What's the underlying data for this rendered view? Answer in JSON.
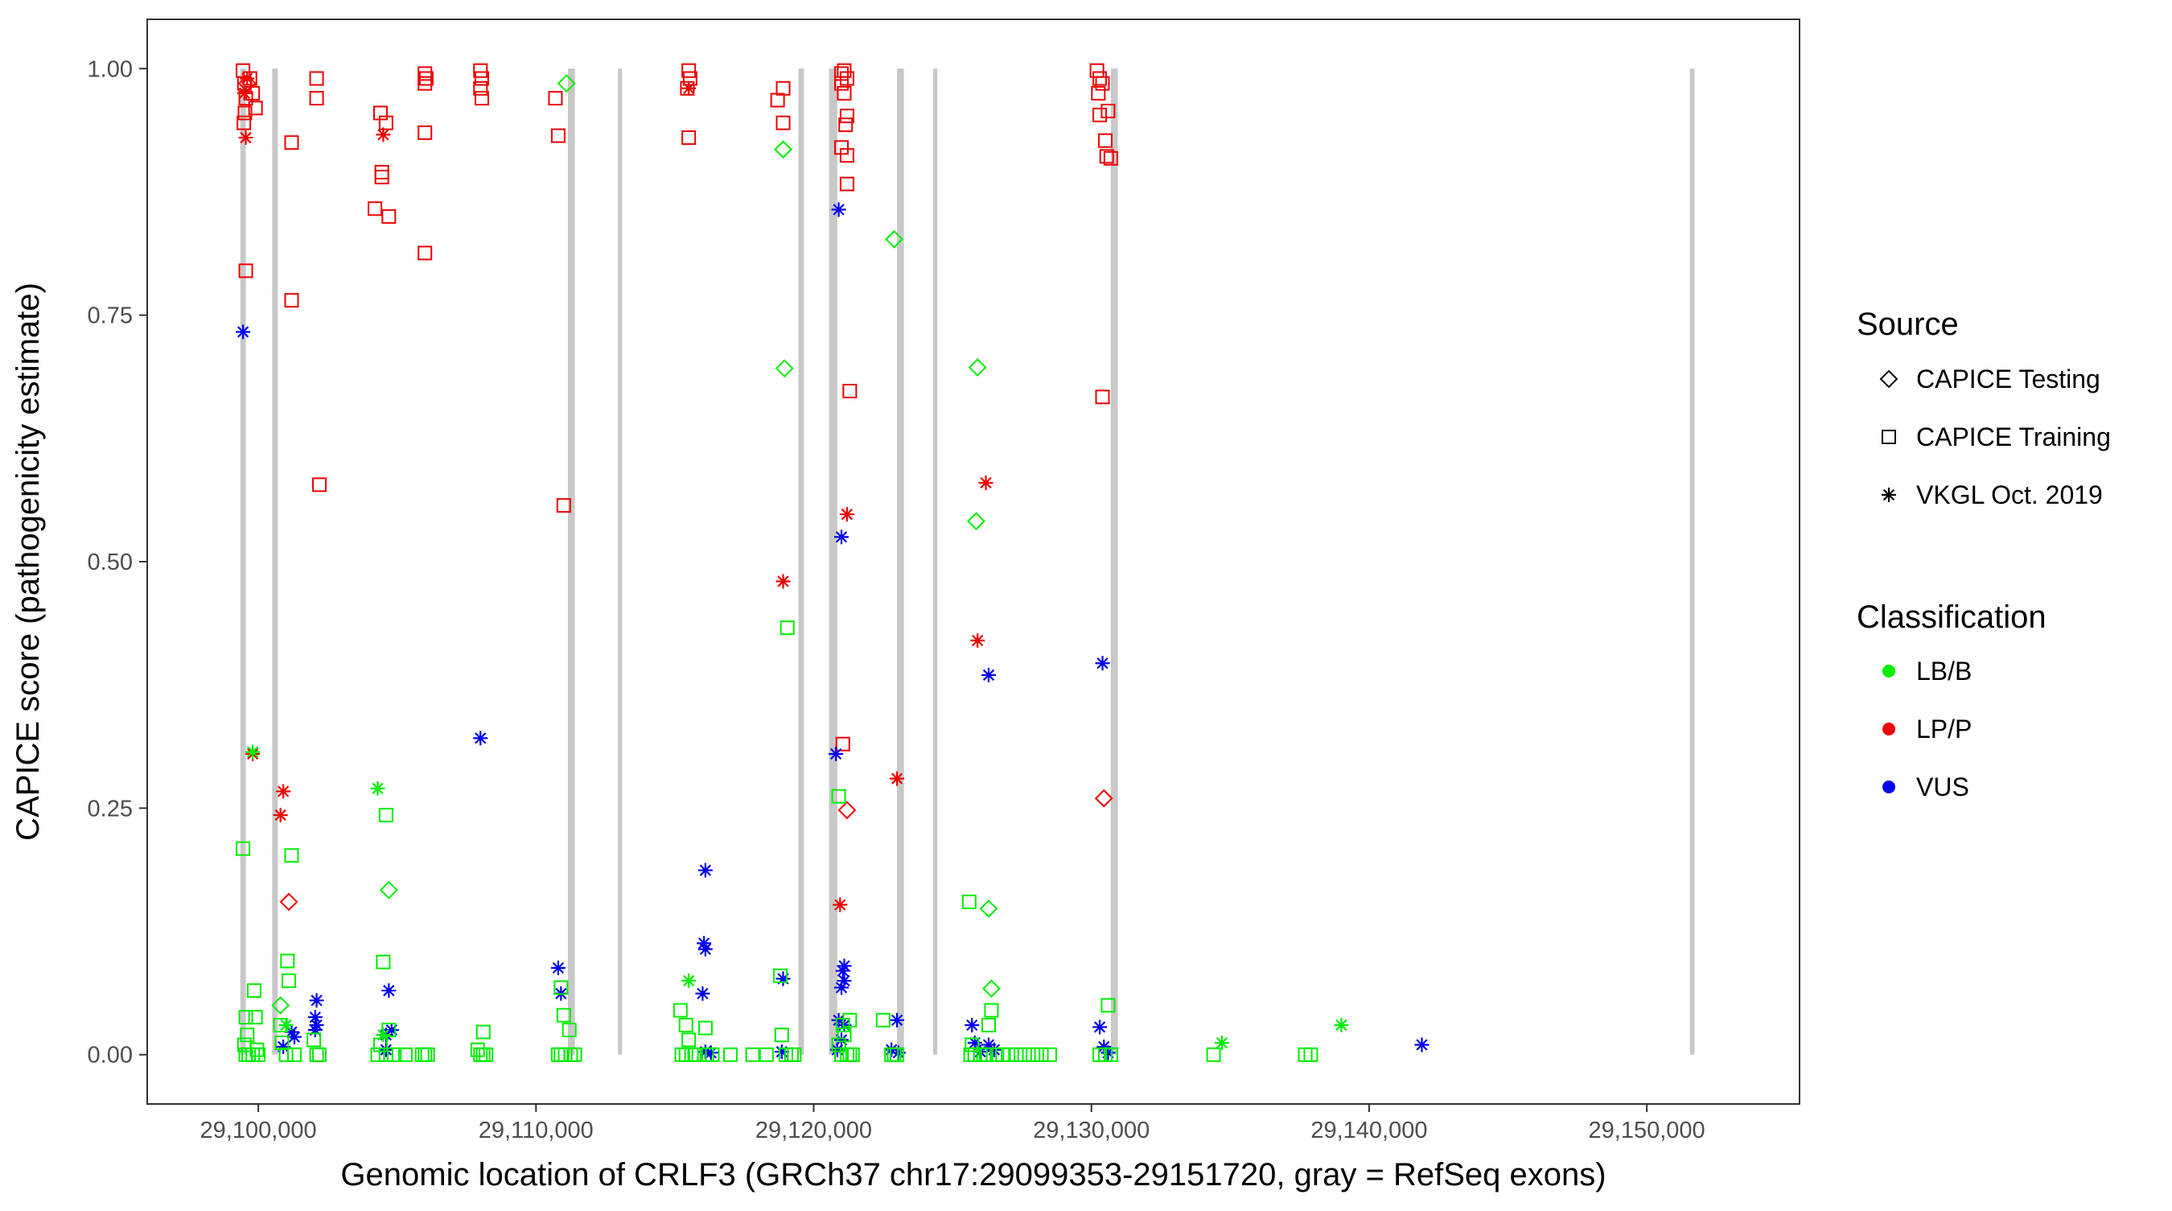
{
  "chart_data": {
    "type": "scatter",
    "xlabel": "Genomic location of CRLF3 (GRCh37 chr17:29099353-29151720, gray = RefSeq exons)",
    "ylabel": "CAPICE score (pathogenicity estimate)",
    "xlim": [
      29096000,
      29155500
    ],
    "ylim": [
      -0.05,
      1.05
    ],
    "x_ticks": [
      29100000,
      29110000,
      29120000,
      29130000,
      29140000,
      29150000
    ],
    "x_tick_labels": [
      "29,100,000",
      "29,110,000",
      "29,120,000",
      "29,130,000",
      "29,140,000",
      "29,150,000"
    ],
    "y_ticks": [
      0,
      0.25,
      0.5,
      0.75,
      1.0
    ],
    "y_tick_labels": [
      "0.00",
      "0.25",
      "0.50",
      "0.75",
      "1.00"
    ],
    "grid": false,
    "exons": [
      {
        "start": 29099353,
        "end": 29099550
      },
      {
        "start": 29100500,
        "end": 29100700
      },
      {
        "start": 29111150,
        "end": 29111400
      },
      {
        "start": 29112950,
        "end": 29113100
      },
      {
        "start": 29119450,
        "end": 29119650
      },
      {
        "start": 29120550,
        "end": 29120850
      },
      {
        "start": 29123000,
        "end": 29123250
      },
      {
        "start": 29124300,
        "end": 29124450
      },
      {
        "start": 29130700,
        "end": 29130950
      },
      {
        "start": 29151550,
        "end": 29151720
      }
    ],
    "legend": {
      "source_title": "Source",
      "source_items": [
        {
          "label": "CAPICE Testing",
          "shape": "diamond"
        },
        {
          "label": "CAPICE Training",
          "shape": "square"
        },
        {
          "label": "VKGL Oct. 2019",
          "shape": "star"
        }
      ],
      "class_title": "Classification",
      "class_items": [
        {
          "label": "LB/B",
          "color": "#00ee00"
        },
        {
          "label": "LP/P",
          "color": "#ee0000"
        },
        {
          "label": "VUS",
          "color": "#0000ee"
        }
      ]
    },
    "series": [
      {
        "shape": "square",
        "class": "LP/P",
        "points": [
          [
            29099450,
            0.998
          ],
          [
            29099500,
            0.985
          ],
          [
            29099550,
            0.97
          ],
          [
            29099520,
            0.955
          ],
          [
            29099480,
            0.945
          ],
          [
            29099700,
            0.99
          ],
          [
            29099800,
            0.975
          ],
          [
            29099900,
            0.96
          ],
          [
            29099550,
            0.795
          ],
          [
            29101200,
            0.925
          ],
          [
            29101200,
            0.765
          ],
          [
            29102100,
            0.99
          ],
          [
            29102100,
            0.97
          ],
          [
            29102200,
            0.578
          ],
          [
            29104400,
            0.955
          ],
          [
            29104600,
            0.945
          ],
          [
            29104450,
            0.895
          ],
          [
            29104450,
            0.89
          ],
          [
            29104200,
            0.858
          ],
          [
            29104700,
            0.85
          ],
          [
            29106000,
            0.995
          ],
          [
            29106050,
            0.99
          ],
          [
            29106000,
            0.985
          ],
          [
            29106000,
            0.935
          ],
          [
            29106000,
            0.813
          ],
          [
            29108000,
            0.998
          ],
          [
            29108050,
            0.99
          ],
          [
            29108000,
            0.98
          ],
          [
            29108050,
            0.97
          ],
          [
            29110700,
            0.97
          ],
          [
            29110800,
            0.932
          ],
          [
            29111000,
            0.557
          ],
          [
            29115500,
            0.998
          ],
          [
            29115550,
            0.99
          ],
          [
            29115450,
            0.98
          ],
          [
            29115500,
            0.93
          ],
          [
            29118900,
            0.98
          ],
          [
            29118700,
            0.968
          ],
          [
            29118900,
            0.945
          ],
          [
            29121100,
            0.998
          ],
          [
            29121000,
            0.995
          ],
          [
            29121200,
            0.99
          ],
          [
            29121000,
            0.985
          ],
          [
            29121100,
            0.975
          ],
          [
            29121200,
            0.952
          ],
          [
            29121150,
            0.943
          ],
          [
            29121000,
            0.92
          ],
          [
            29121200,
            0.912
          ],
          [
            29121200,
            0.883
          ],
          [
            29121300,
            0.673
          ],
          [
            29121050,
            0.315
          ],
          [
            29130200,
            0.998
          ],
          [
            29130300,
            0.99
          ],
          [
            29130400,
            0.985
          ],
          [
            29130250,
            0.975
          ],
          [
            29130300,
            0.953
          ],
          [
            29130600,
            0.957
          ],
          [
            29130500,
            0.927
          ],
          [
            29130550,
            0.911
          ],
          [
            29130700,
            0.909
          ],
          [
            29130400,
            0.667
          ]
        ]
      },
      {
        "shape": "star",
        "class": "LP/P",
        "points": [
          [
            29099600,
            0.99
          ],
          [
            29099500,
            0.975
          ],
          [
            29099550,
            0.93
          ],
          [
            29099800,
            0.305
          ],
          [
            29100900,
            0.267
          ],
          [
            29100800,
            0.243
          ],
          [
            29104500,
            0.933
          ],
          [
            29115500,
            0.98
          ],
          [
            29118900,
            0.48
          ],
          [
            29121200,
            0.548
          ],
          [
            29120950,
            0.152
          ],
          [
            29123000,
            0.28
          ],
          [
            29126200,
            0.58
          ],
          [
            29125900,
            0.42
          ]
        ]
      },
      {
        "shape": "diamond",
        "class": "LP/P",
        "points": [
          [
            29099600,
            0.985
          ],
          [
            29101100,
            0.155
          ],
          [
            29121200,
            0.248
          ],
          [
            29130450,
            0.26
          ]
        ]
      },
      {
        "shape": "star",
        "class": "VUS",
        "points": [
          [
            29099450,
            0.733
          ],
          [
            29108000,
            0.321
          ],
          [
            29120900,
            0.857
          ],
          [
            29121000,
            0.525
          ],
          [
            29120800,
            0.305
          ],
          [
            29126300,
            0.385
          ],
          [
            29130400,
            0.397
          ],
          [
            29116100,
            0.187
          ],
          [
            29116050,
            0.113
          ],
          [
            29116100,
            0.107
          ],
          [
            29116000,
            0.062
          ],
          [
            29101200,
            0.023
          ],
          [
            29101300,
            0.018
          ],
          [
            29100900,
            0.008
          ],
          [
            29102100,
            0.055
          ],
          [
            29102050,
            0.038
          ],
          [
            29102100,
            0.03
          ],
          [
            29102050,
            0.025
          ],
          [
            29104700,
            0.065
          ],
          [
            29104800,
            0.025
          ],
          [
            29104600,
            0.02
          ],
          [
            29104600,
            0.005
          ],
          [
            29110800,
            0.088
          ],
          [
            29110900,
            0.062
          ],
          [
            29118900,
            0.077
          ],
          [
            29118850,
            0.003
          ],
          [
            29121100,
            0.09
          ],
          [
            29121050,
            0.085
          ],
          [
            29121100,
            0.075
          ],
          [
            29121000,
            0.068
          ],
          [
            29120900,
            0.035
          ],
          [
            29121100,
            0.03
          ],
          [
            29121000,
            0.015
          ],
          [
            29120850,
            0.005
          ],
          [
            29123000,
            0.035
          ],
          [
            29122800,
            0.005
          ],
          [
            29123050,
            0.002
          ],
          [
            29125700,
            0.03
          ],
          [
            29125800,
            0.012
          ],
          [
            29126300,
            0.01
          ],
          [
            29126500,
            0.005
          ],
          [
            29126000,
            0.003
          ],
          [
            29130300,
            0.028
          ],
          [
            29130450,
            0.008
          ],
          [
            29130600,
            0.002
          ],
          [
            29116100,
            0.003
          ],
          [
            29116300,
            0.002
          ],
          [
            29141900,
            0.01
          ]
        ]
      },
      {
        "shape": "diamond",
        "class": "LB/B",
        "points": [
          [
            29111100,
            0.985
          ],
          [
            29118900,
            0.918
          ],
          [
            29122900,
            0.827
          ],
          [
            29118950,
            0.696
          ],
          [
            29125900,
            0.697
          ],
          [
            29125850,
            0.541
          ],
          [
            29104700,
            0.167
          ],
          [
            29126300,
            0.148
          ],
          [
            29126400,
            0.067
          ],
          [
            29100800,
            0.05
          ]
        ]
      },
      {
        "shape": "star",
        "class": "LB/B",
        "points": [
          [
            29099800,
            0.307
          ],
          [
            29104300,
            0.27
          ],
          [
            29115500,
            0.075
          ],
          [
            29134700,
            0.012
          ],
          [
            29139000,
            0.03
          ],
          [
            29101000,
            0.03
          ],
          [
            29104500,
            0.02
          ]
        ]
      },
      {
        "shape": "square",
        "class": "LB/B",
        "points": [
          [
            29099450,
            0.209
          ],
          [
            29099550,
            0.038
          ],
          [
            29099850,
            0.065
          ],
          [
            29099600,
            0.02
          ],
          [
            29099900,
            0.038
          ],
          [
            29099500,
            0.01
          ],
          [
            29099550,
            0.0
          ],
          [
            29099650,
            0.0
          ],
          [
            29099800,
            0.0
          ],
          [
            29099950,
            0.005
          ],
          [
            29100000,
            0.0
          ],
          [
            29101200,
            0.202
          ],
          [
            29101050,
            0.095
          ],
          [
            29101100,
            0.075
          ],
          [
            29100800,
            0.03
          ],
          [
            29100850,
            0.012
          ],
          [
            29101000,
            0.0
          ],
          [
            29101300,
            0.0
          ],
          [
            29102000,
            0.015
          ],
          [
            29102100,
            0.0
          ],
          [
            29102200,
            0.0
          ],
          [
            29104600,
            0.243
          ],
          [
            29104500,
            0.094
          ],
          [
            29104700,
            0.025
          ],
          [
            29104400,
            0.01
          ],
          [
            29104300,
            0.0
          ],
          [
            29104600,
            0.0
          ],
          [
            29104900,
            0.0
          ],
          [
            29105300,
            0.0
          ],
          [
            29105900,
            0.0
          ],
          [
            29106000,
            0.0
          ],
          [
            29106100,
            0.0
          ],
          [
            29108100,
            0.023
          ],
          [
            29107900,
            0.005
          ],
          [
            29108000,
            0.0
          ],
          [
            29108100,
            0.0
          ],
          [
            29108200,
            0.0
          ],
          [
            29110900,
            0.068
          ],
          [
            29111000,
            0.04
          ],
          [
            29111200,
            0.025
          ],
          [
            29110800,
            0.0
          ],
          [
            29110900,
            0.0
          ],
          [
            29111050,
            0.0
          ],
          [
            29111250,
            0.0
          ],
          [
            29111400,
            0.0
          ],
          [
            29115200,
            0.045
          ],
          [
            29115400,
            0.03
          ],
          [
            29115500,
            0.015
          ],
          [
            29115250,
            0.0
          ],
          [
            29115400,
            0.0
          ],
          [
            29115600,
            0.0
          ],
          [
            29115750,
            0.0
          ],
          [
            29116100,
            0.027
          ],
          [
            29116150,
            0.0
          ],
          [
            29116350,
            0.0
          ],
          [
            29117000,
            0.0
          ],
          [
            29117800,
            0.0
          ],
          [
            29118300,
            0.0
          ],
          [
            29118800,
            0.08
          ],
          [
            29118850,
            0.02
          ],
          [
            29119000,
            0.0
          ],
          [
            29119200,
            0.0
          ],
          [
            29119300,
            0.0
          ],
          [
            29119050,
            0.433
          ],
          [
            29120900,
            0.262
          ],
          [
            29121300,
            0.035
          ],
          [
            29121050,
            0.03
          ],
          [
            29121100,
            0.02
          ],
          [
            29120900,
            0.01
          ],
          [
            29121000,
            0.0
          ],
          [
            29121200,
            0.0
          ],
          [
            29121300,
            0.0
          ],
          [
            29121400,
            0.0
          ],
          [
            29122500,
            0.035
          ],
          [
            29122800,
            0.0
          ],
          [
            29122900,
            0.0
          ],
          [
            29123000,
            0.0
          ],
          [
            29125600,
            0.155
          ],
          [
            29126400,
            0.045
          ],
          [
            29126300,
            0.03
          ],
          [
            29125700,
            0.01
          ],
          [
            29125650,
            0.0
          ],
          [
            29125800,
            0.0
          ],
          [
            29126000,
            0.0
          ],
          [
            29126200,
            0.0
          ],
          [
            29126600,
            0.0
          ],
          [
            29126800,
            0.0
          ],
          [
            29127000,
            0.0
          ],
          [
            29127300,
            0.0
          ],
          [
            29127600,
            0.0
          ],
          [
            29127900,
            0.0
          ],
          [
            29128200,
            0.0
          ],
          [
            29128500,
            0.0
          ],
          [
            29130600,
            0.05
          ],
          [
            29130300,
            0.0
          ],
          [
            29130500,
            0.0
          ],
          [
            29130700,
            0.0
          ],
          [
            29134400,
            0.0
          ],
          [
            29137700,
            0.0
          ],
          [
            29137900,
            0.0
          ]
        ]
      }
    ]
  }
}
